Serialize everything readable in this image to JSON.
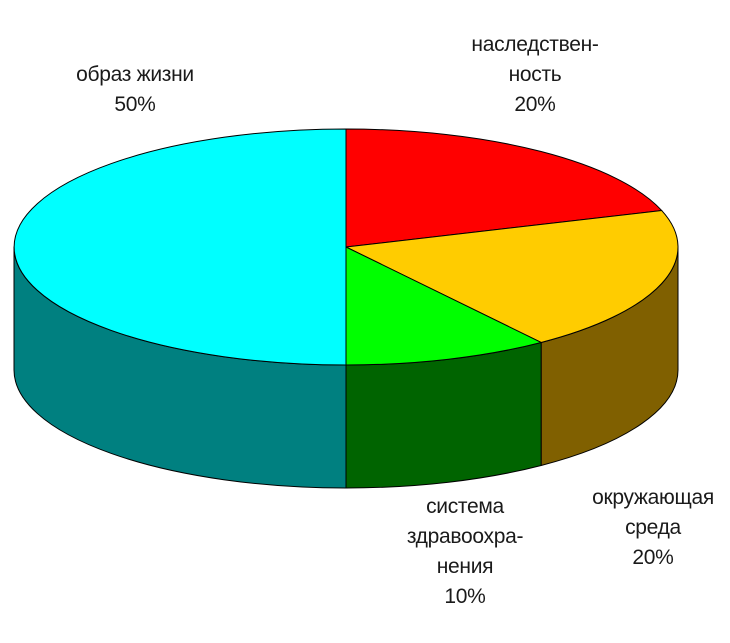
{
  "chart_data": {
    "type": "pie",
    "style": "3d",
    "slices": [
      {
        "label_lines": [
          "наследствен-",
          "ность"
        ],
        "value": 20,
        "percent_label": "20%",
        "color": "#ff0000",
        "side_color": "#8b0000"
      },
      {
        "label_lines": [
          "окружающая",
          "среда"
        ],
        "value": 20,
        "percent_label": "20%",
        "color": "#ffcc00",
        "side_color": "#806000"
      },
      {
        "label_lines": [
          "система",
          "здравоохра-",
          "нения"
        ],
        "value": 10,
        "percent_label": "10%",
        "color": "#00ff00",
        "side_color": "#006400"
      },
      {
        "label_lines": [
          "образ жизни"
        ],
        "value": 50,
        "percent_label": "50%",
        "color": "#00ffff",
        "side_color": "#008080"
      }
    ]
  }
}
